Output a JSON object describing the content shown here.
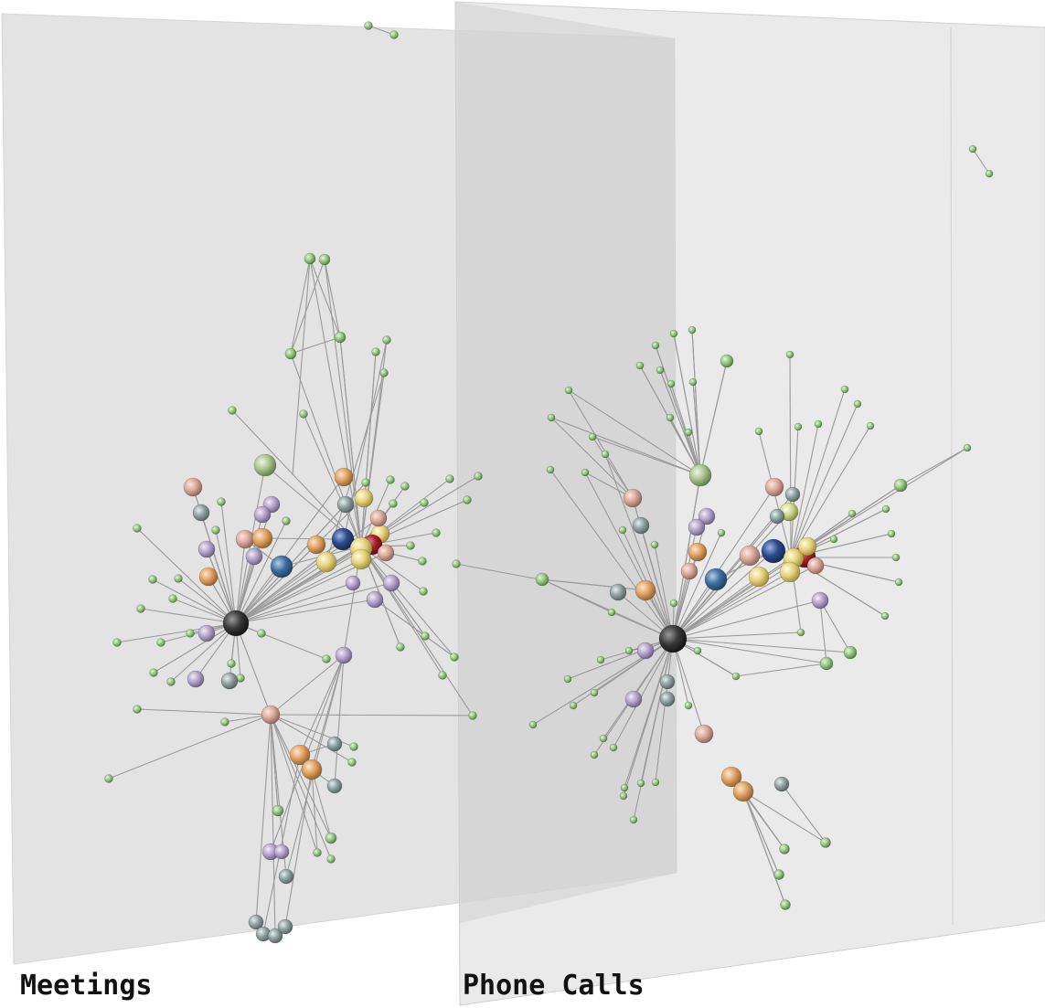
{
  "layers": [
    {
      "name": "Meetings"
    },
    {
      "name": "Phone Calls"
    }
  ],
  "colors": {
    "plane_fill": "#e3e3e3",
    "plane_overlap": "#cfcfcf",
    "edge": "#9a9a9a",
    "node_small": "#8fbf7a",
    "hub_black": "#2b2b2b",
    "hub_blue_dark": "#2c4a8c",
    "hub_blue": "#3f6f9e",
    "hub_red": "#a8202a",
    "node_yellow": "#e6d27a",
    "node_orange": "#e0a060",
    "node_pink": "#d9a79a",
    "node_lavender": "#b3a3c9",
    "node_slate": "#8f9fa0",
    "node_sage": "#a9c38f",
    "node_lime": "#cfd88a"
  }
}
